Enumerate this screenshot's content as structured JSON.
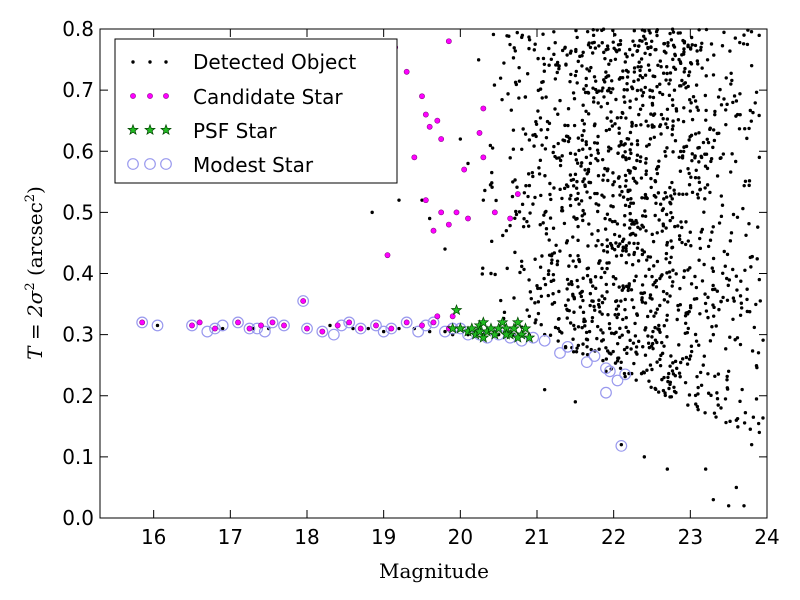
{
  "chart_data": {
    "type": "scatter",
    "title": "",
    "xlabel": "Magnitude",
    "ylabel_prefix": "T = 2σ",
    "ylabel_sup1": "2",
    "ylabel_mid": " (arcsec",
    "ylabel_sup2": "2",
    "ylabel_suffix": ")",
    "xlim": [
      15.3,
      24.0
    ],
    "ylim": [
      0.0,
      0.8
    ],
    "xticks": [
      16,
      17,
      18,
      19,
      20,
      21,
      22,
      23,
      24
    ],
    "yticks": [
      0.0,
      0.1,
      0.2,
      0.3,
      0.4,
      0.5,
      0.6,
      0.7,
      0.8
    ],
    "xtick_labels": [
      "16",
      "17",
      "18",
      "19",
      "20",
      "21",
      "22",
      "23",
      "24"
    ],
    "ytick_labels": [
      "0.0",
      "0.1",
      "0.2",
      "0.3",
      "0.4",
      "0.5",
      "0.6",
      "0.7",
      "0.8"
    ],
    "grid": false,
    "legend_position": "top-left",
    "series": [
      {
        "name": "Detected Object",
        "marker": "dot",
        "color": "#000000",
        "points": [
          [
            16.05,
            0.315
          ],
          [
            16.9,
            0.31
          ],
          [
            17.3,
            0.31
          ],
          [
            17.5,
            0.31
          ],
          [
            18.3,
            0.315
          ],
          [
            18.6,
            0.31
          ],
          [
            18.8,
            0.31
          ],
          [
            19.0,
            0.305
          ],
          [
            19.2,
            0.31
          ],
          [
            19.4,
            0.31
          ],
          [
            19.6,
            0.305
          ],
          [
            19.8,
            0.305
          ],
          [
            19.9,
            0.3
          ],
          [
            20.1,
            0.3
          ],
          [
            20.3,
            0.3
          ],
          [
            20.5,
            0.3
          ],
          [
            20.7,
            0.3
          ],
          [
            20.9,
            0.3
          ],
          [
            21.1,
            0.3
          ],
          [
            18.85,
            0.5
          ],
          [
            19.2,
            0.52
          ],
          [
            19.6,
            0.49
          ],
          [
            19.8,
            0.44
          ],
          [
            19.5,
            0.52
          ],
          [
            20.0,
            0.62
          ],
          [
            20.1,
            0.58
          ],
          [
            20.3,
            0.52
          ],
          [
            20.6,
            0.47
          ],
          [
            20.8,
            0.42
          ],
          [
            21.0,
            0.38
          ],
          [
            21.2,
            0.35
          ],
          [
            20.4,
            0.4
          ],
          [
            20.7,
            0.36
          ],
          [
            20.9,
            0.33
          ],
          [
            21.1,
            0.21
          ],
          [
            21.5,
            0.19
          ],
          [
            21.9,
            0.24
          ],
          [
            22.1,
            0.12
          ],
          [
            22.4,
            0.1
          ],
          [
            22.7,
            0.08
          ],
          [
            23.2,
            0.08
          ],
          [
            23.3,
            0.03
          ],
          [
            23.5,
            0.02
          ],
          [
            23.7,
            0.02
          ],
          [
            23.6,
            0.05
          ],
          [
            23.8,
            0.12
          ],
          [
            23.9,
            0.14
          ],
          [
            23.9,
            0.39
          ],
          [
            23.9,
            0.59
          ],
          [
            23.8,
            0.74
          ],
          [
            23.7,
            0.79
          ],
          [
            23.5,
            0.24
          ],
          [
            23.4,
            0.18
          ],
          [
            23.6,
            0.16
          ],
          [
            23.3,
            0.3
          ]
        ],
        "cloud": {
          "x_range": [
            20.2,
            23.95
          ],
          "y_range": [
            0.14,
            0.8
          ],
          "x_center": 22.3,
          "count": 1400
        }
      },
      {
        "name": "Candidate Star",
        "marker": "magenta-dot",
        "color": "#ff00ff",
        "points": [
          [
            15.85,
            0.32
          ],
          [
            16.5,
            0.315
          ],
          [
            16.6,
            0.32
          ],
          [
            16.8,
            0.31
          ],
          [
            17.1,
            0.32
          ],
          [
            17.25,
            0.31
          ],
          [
            17.4,
            0.315
          ],
          [
            17.55,
            0.32
          ],
          [
            17.7,
            0.315
          ],
          [
            17.95,
            0.355
          ],
          [
            18.0,
            0.31
          ],
          [
            18.2,
            0.305
          ],
          [
            18.4,
            0.315
          ],
          [
            18.55,
            0.32
          ],
          [
            18.7,
            0.31
          ],
          [
            18.9,
            0.315
          ],
          [
            19.1,
            0.31
          ],
          [
            19.3,
            0.32
          ],
          [
            19.5,
            0.315
          ],
          [
            19.65,
            0.32
          ],
          [
            19.85,
            0.31
          ],
          [
            19.05,
            0.43
          ],
          [
            19.15,
            0.77
          ],
          [
            19.3,
            0.73
          ],
          [
            19.5,
            0.69
          ],
          [
            19.55,
            0.66
          ],
          [
            19.6,
            0.64
          ],
          [
            19.7,
            0.65
          ],
          [
            19.75,
            0.62
          ],
          [
            19.4,
            0.59
          ],
          [
            19.85,
            0.78
          ],
          [
            19.55,
            0.52
          ],
          [
            19.65,
            0.47
          ],
          [
            19.75,
            0.5
          ],
          [
            19.85,
            0.48
          ],
          [
            19.95,
            0.5
          ],
          [
            20.05,
            0.57
          ],
          [
            20.25,
            0.63
          ],
          [
            20.3,
            0.59
          ],
          [
            20.3,
            0.67
          ],
          [
            20.45,
            0.5
          ],
          [
            20.65,
            0.49
          ],
          [
            20.75,
            0.53
          ],
          [
            20.1,
            0.49
          ],
          [
            19.7,
            0.33
          ],
          [
            19.9,
            0.33
          ]
        ]
      },
      {
        "name": "PSF Star",
        "marker": "star",
        "color": "#008800",
        "points": [
          [
            19.9,
            0.31
          ],
          [
            19.95,
            0.34
          ],
          [
            20.0,
            0.31
          ],
          [
            20.1,
            0.305
          ],
          [
            20.15,
            0.31
          ],
          [
            20.2,
            0.3
          ],
          [
            20.25,
            0.315
          ],
          [
            20.3,
            0.295
          ],
          [
            20.35,
            0.305
          ],
          [
            20.4,
            0.31
          ],
          [
            20.45,
            0.3
          ],
          [
            20.5,
            0.31
          ],
          [
            20.55,
            0.32
          ],
          [
            20.6,
            0.31
          ],
          [
            20.65,
            0.3
          ],
          [
            20.7,
            0.31
          ],
          [
            20.75,
            0.32
          ],
          [
            20.8,
            0.3
          ],
          [
            20.85,
            0.31
          ],
          [
            20.9,
            0.295
          ],
          [
            20.3,
            0.32
          ],
          [
            20.6,
            0.3
          ],
          [
            20.75,
            0.295
          ],
          [
            20.25,
            0.305
          ]
        ]
      },
      {
        "name": "Modest Star",
        "marker": "circle",
        "color": "#9999ee",
        "points": [
          [
            15.85,
            0.32
          ],
          [
            16.05,
            0.315
          ],
          [
            16.5,
            0.315
          ],
          [
            16.7,
            0.305
          ],
          [
            16.8,
            0.31
          ],
          [
            16.9,
            0.315
          ],
          [
            17.1,
            0.32
          ],
          [
            17.25,
            0.31
          ],
          [
            17.35,
            0.31
          ],
          [
            17.45,
            0.305
          ],
          [
            17.55,
            0.32
          ],
          [
            17.7,
            0.315
          ],
          [
            17.95,
            0.355
          ],
          [
            18.0,
            0.31
          ],
          [
            18.2,
            0.305
          ],
          [
            18.35,
            0.3
          ],
          [
            18.45,
            0.315
          ],
          [
            18.55,
            0.32
          ],
          [
            18.7,
            0.31
          ],
          [
            18.9,
            0.315
          ],
          [
            19.0,
            0.305
          ],
          [
            19.1,
            0.31
          ],
          [
            19.3,
            0.32
          ],
          [
            19.45,
            0.305
          ],
          [
            19.55,
            0.315
          ],
          [
            19.65,
            0.32
          ],
          [
            19.8,
            0.305
          ],
          [
            19.9,
            0.31
          ],
          [
            20.0,
            0.31
          ],
          [
            20.1,
            0.3
          ],
          [
            20.25,
            0.3
          ],
          [
            20.35,
            0.295
          ],
          [
            20.5,
            0.3
          ],
          [
            20.65,
            0.295
          ],
          [
            20.8,
            0.29
          ],
          [
            20.95,
            0.295
          ],
          [
            21.1,
            0.29
          ],
          [
            21.3,
            0.27
          ],
          [
            21.4,
            0.28
          ],
          [
            21.65,
            0.255
          ],
          [
            21.75,
            0.265
          ],
          [
            21.9,
            0.245
          ],
          [
            21.95,
            0.24
          ],
          [
            21.9,
            0.205
          ],
          [
            22.05,
            0.225
          ],
          [
            22.15,
            0.235
          ],
          [
            22.1,
            0.118
          ]
        ]
      }
    ]
  }
}
